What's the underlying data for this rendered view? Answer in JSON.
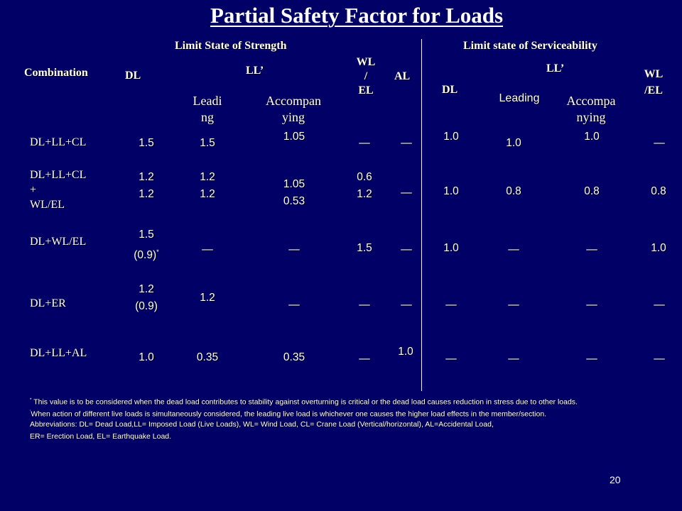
{
  "title": "Partial Safety Factor for Loads",
  "headers": {
    "strength_group": "Limit State of Strength",
    "service_group": "Limit state of Serviceability",
    "combination": "Combination",
    "dl": "DL",
    "ll_strength": "LL’",
    "leading_strength": "Leadi\nng",
    "accompanying_strength": "Accompan\nying",
    "wl_el_strength": "WL\n/\nEL",
    "al": "AL",
    "dl_service": "DL",
    "ll_service": "LL’",
    "leading_service": "Leading",
    "accompanying_service": "Accompa\nnying",
    "wl_el_service": "WL\n/EL"
  },
  "rows": [
    {
      "combination": "DL+LL+CL",
      "dl": "1.5",
      "leading": "1.5",
      "accompanying": "1.05",
      "wl_el": "—",
      "al": "—",
      "s_dl": "1.0",
      "s_leading": "1.0",
      "s_accompanying": "1.0",
      "s_wl_el": "—"
    },
    {
      "combination": "DL+LL+CL\n+\nWL/EL",
      "dl": "1.2\n1.2",
      "leading": "1.2\n1.2",
      "accompanying": "1.05\n0.53",
      "wl_el": "0.6\n1.2",
      "al": "—",
      "s_dl": "1.0",
      "s_leading": "0.8",
      "s_accompanying": "0.8",
      "s_wl_el": "0.8"
    },
    {
      "combination": "DL+WL/EL",
      "dl": "1.5",
      "dl_note": "(0.9)",
      "dl_mark": "*",
      "leading": "—",
      "accompanying": "—",
      "wl_el": "1.5",
      "al": "—",
      "s_dl": "1.0",
      "s_leading": "—",
      "s_accompanying": "—",
      "s_wl_el": "1.0"
    },
    {
      "combination": "DL+ER",
      "dl": "1.2\n(0.9)",
      "leading": "1.2",
      "accompanying": "—",
      "wl_el": "—",
      "al": "—",
      "s_dl": "—",
      "s_leading": "—",
      "s_accompanying": "—",
      "s_wl_el": "—"
    },
    {
      "combination": "DL+LL+AL",
      "dl": "1.0",
      "leading": "0.35",
      "accompanying": "0.35",
      "wl_el": "—",
      "al": "1.0",
      "s_dl": "—",
      "s_leading": "—",
      "s_accompanying": "—",
      "s_wl_el": "—"
    }
  ],
  "footnotes": {
    "note1_mark": "*",
    "note1": "This value is to be considered when the dead load contributes to stability against overturning is critical or the dead load causes reduction in stress due to other loads.",
    "note2_mark": "’",
    "note2": "When action of different live loads is simultaneously considered, the leading live load is whichever one causes the higher load effects in the member/section.",
    "abbreviations": "Abbreviations: DL= Dead Load,LL= Imposed Load (Live Loads), WL= Wind Load, CL= Crane Load (Vertical/horizontal), AL=Accidental Load,",
    "abbreviations2": "ER= Erection Load, EL= Earthquake Load."
  },
  "page_number": "20"
}
